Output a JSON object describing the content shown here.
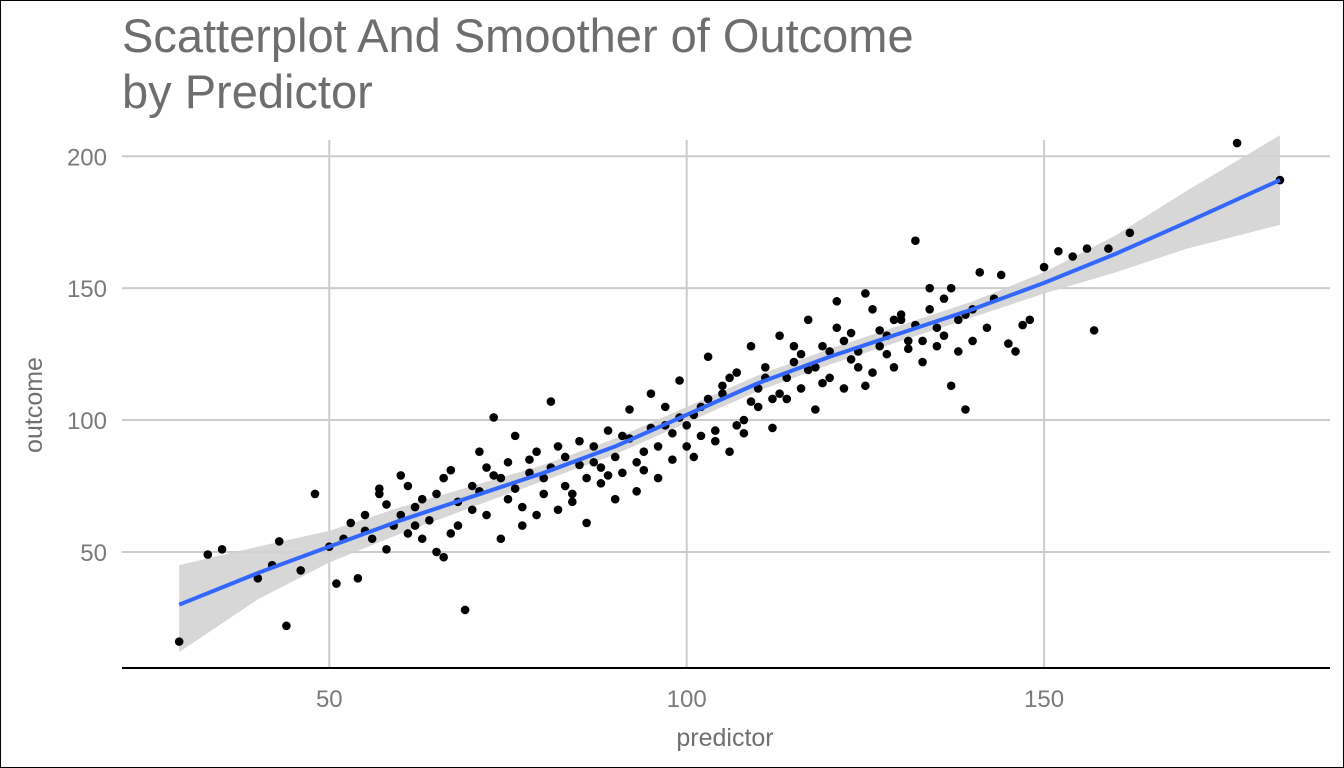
{
  "title_line1": "Scatterplot And Smoother of Outcome",
  "title_line2": "by Predictor",
  "colors": {
    "points": "#000000",
    "smoother": "#3366ff",
    "band": "#d3d3d3",
    "grid": "#cccccc",
    "title": "#6e6e6e",
    "axis_text": "#7a7a7a"
  },
  "chart_data": {
    "type": "scatter",
    "title": "Scatterplot And Smoother of Outcome by Predictor",
    "xlabel": "predictor",
    "ylabel": "outcome",
    "xlim": [
      21,
      190
    ],
    "ylim": [
      6,
      213
    ],
    "x_ticks": [
      50,
      100,
      150
    ],
    "y_ticks": [
      50,
      100,
      150,
      200
    ],
    "grid": true,
    "legend": "none",
    "points": [
      [
        29,
        16
      ],
      [
        33,
        49
      ],
      [
        40,
        40
      ],
      [
        43,
        54
      ],
      [
        44,
        22
      ],
      [
        46,
        43
      ],
      [
        48,
        72
      ],
      [
        50,
        52
      ],
      [
        51,
        38
      ],
      [
        53,
        61
      ],
      [
        54,
        40
      ],
      [
        55,
        58
      ],
      [
        56,
        55
      ],
      [
        57,
        74
      ],
      [
        58,
        68
      ],
      [
        59,
        60
      ],
      [
        60,
        79
      ],
      [
        61,
        57
      ],
      [
        62,
        67
      ],
      [
        63,
        55
      ],
      [
        64,
        62
      ],
      [
        65,
        72
      ],
      [
        66,
        48
      ],
      [
        67,
        81
      ],
      [
        68,
        60
      ],
      [
        69,
        28
      ],
      [
        70,
        75
      ],
      [
        71,
        88
      ],
      [
        72,
        64
      ],
      [
        73,
        101
      ],
      [
        74,
        55
      ],
      [
        75,
        70
      ],
      [
        76,
        94
      ],
      [
        77,
        60
      ],
      [
        78,
        80
      ],
      [
        79,
        64
      ],
      [
        80,
        72
      ],
      [
        81,
        107
      ],
      [
        82,
        66
      ],
      [
        83,
        86
      ],
      [
        84,
        72
      ],
      [
        85,
        92
      ],
      [
        86,
        61
      ],
      [
        87,
        84
      ],
      [
        88,
        76
      ],
      [
        89,
        96
      ],
      [
        90,
        70
      ],
      [
        91,
        80
      ],
      [
        92,
        104
      ],
      [
        93,
        73
      ],
      [
        94,
        88
      ],
      [
        95,
        110
      ],
      [
        96,
        78
      ],
      [
        97,
        98
      ],
      [
        98,
        85
      ],
      [
        99,
        115
      ],
      [
        100,
        90
      ],
      [
        101,
        102
      ],
      [
        102,
        94
      ],
      [
        103,
        124
      ],
      [
        104,
        96
      ],
      [
        105,
        110
      ],
      [
        106,
        88
      ],
      [
        107,
        118
      ],
      [
        108,
        100
      ],
      [
        109,
        128
      ],
      [
        110,
        105
      ],
      [
        111,
        120
      ],
      [
        112,
        97
      ],
      [
        113,
        132
      ],
      [
        114,
        108
      ],
      [
        115,
        122
      ],
      [
        116,
        112
      ],
      [
        117,
        138
      ],
      [
        118,
        104
      ],
      [
        119,
        128
      ],
      [
        120,
        116
      ],
      [
        121,
        145
      ],
      [
        122,
        112
      ],
      [
        123,
        133
      ],
      [
        124,
        120
      ],
      [
        125,
        148
      ],
      [
        126,
        118
      ],
      [
        127,
        134
      ],
      [
        128,
        125
      ],
      [
        129,
        120
      ],
      [
        130,
        138
      ],
      [
        131,
        127
      ],
      [
        132,
        168
      ],
      [
        133,
        130
      ],
      [
        134,
        142
      ],
      [
        135,
        128
      ],
      [
        136,
        132
      ],
      [
        137,
        113
      ],
      [
        138,
        138
      ],
      [
        139,
        104
      ],
      [
        140,
        130
      ],
      [
        141,
        156
      ],
      [
        142,
        135
      ],
      [
        143,
        146
      ],
      [
        144,
        155
      ],
      [
        145,
        129
      ],
      [
        146,
        126
      ],
      [
        147,
        136
      ],
      [
        148,
        138
      ],
      [
        150,
        158
      ],
      [
        152,
        164
      ],
      [
        154,
        162
      ],
      [
        156,
        165
      ],
      [
        157,
        134
      ],
      [
        159,
        165
      ],
      [
        162,
        171
      ],
      [
        177,
        205
      ],
      [
        183,
        191
      ],
      [
        35,
        51
      ],
      [
        42,
        45
      ],
      [
        52,
        55
      ],
      [
        55,
        64
      ],
      [
        58,
        51
      ],
      [
        60,
        64
      ],
      [
        62,
        60
      ],
      [
        65,
        50
      ],
      [
        67,
        57
      ],
      [
        70,
        66
      ],
      [
        72,
        82
      ],
      [
        74,
        78
      ],
      [
        76,
        74
      ],
      [
        78,
        85
      ],
      [
        80,
        78
      ],
      [
        82,
        90
      ],
      [
        84,
        69
      ],
      [
        86,
        78
      ],
      [
        88,
        82
      ],
      [
        90,
        86
      ],
      [
        92,
        93
      ],
      [
        94,
        81
      ],
      [
        96,
        90
      ],
      [
        98,
        95
      ],
      [
        100,
        98
      ],
      [
        102,
        105
      ],
      [
        104,
        92
      ],
      [
        106,
        116
      ],
      [
        108,
        95
      ],
      [
        110,
        112
      ],
      [
        112,
        108
      ],
      [
        114,
        116
      ],
      [
        116,
        125
      ],
      [
        118,
        120
      ],
      [
        120,
        126
      ],
      [
        122,
        130
      ],
      [
        124,
        126
      ],
      [
        126,
        142
      ],
      [
        128,
        132
      ],
      [
        130,
        140
      ],
      [
        132,
        136
      ],
      [
        134,
        150
      ],
      [
        136,
        146
      ],
      [
        138,
        126
      ],
      [
        140,
        142
      ],
      [
        57,
        72
      ],
      [
        61,
        75
      ],
      [
        63,
        70
      ],
      [
        66,
        78
      ],
      [
        68,
        69
      ],
      [
        71,
        73
      ],
      [
        73,
        79
      ],
      [
        75,
        84
      ],
      [
        77,
        67
      ],
      [
        79,
        88
      ],
      [
        81,
        82
      ],
      [
        83,
        75
      ],
      [
        85,
        83
      ],
      [
        87,
        90
      ],
      [
        89,
        79
      ],
      [
        91,
        94
      ],
      [
        93,
        84
      ],
      [
        95,
        97
      ],
      [
        97,
        105
      ],
      [
        99,
        101
      ],
      [
        101,
        86
      ],
      [
        103,
        108
      ],
      [
        105,
        113
      ],
      [
        107,
        98
      ],
      [
        109,
        107
      ],
      [
        111,
        116
      ],
      [
        113,
        110
      ],
      [
        115,
        128
      ],
      [
        117,
        119
      ],
      [
        119,
        114
      ],
      [
        121,
        135
      ],
      [
        123,
        123
      ],
      [
        125,
        113
      ],
      [
        127,
        128
      ],
      [
        129,
        138
      ],
      [
        131,
        130
      ],
      [
        133,
        122
      ],
      [
        135,
        135
      ],
      [
        137,
        150
      ],
      [
        139,
        140
      ]
    ],
    "smoother_x": [
      29,
      40,
      50,
      60,
      70,
      80,
      90,
      100,
      110,
      120,
      130,
      140,
      150,
      160,
      170,
      183
    ],
    "smoother_y": [
      30,
      42,
      52,
      62,
      71,
      80,
      90,
      102,
      114,
      124,
      133,
      142,
      152,
      163,
      175,
      191
    ],
    "band_lower": [
      12,
      32,
      46,
      57,
      67,
      77,
      87,
      99,
      111,
      121,
      130,
      139,
      148,
      156,
      165,
      174
    ],
    "band_upper": [
      45,
      52,
      58,
      67,
      75,
      83,
      93,
      105,
      117,
      127,
      136,
      145,
      156,
      170,
      187,
      208
    ]
  }
}
